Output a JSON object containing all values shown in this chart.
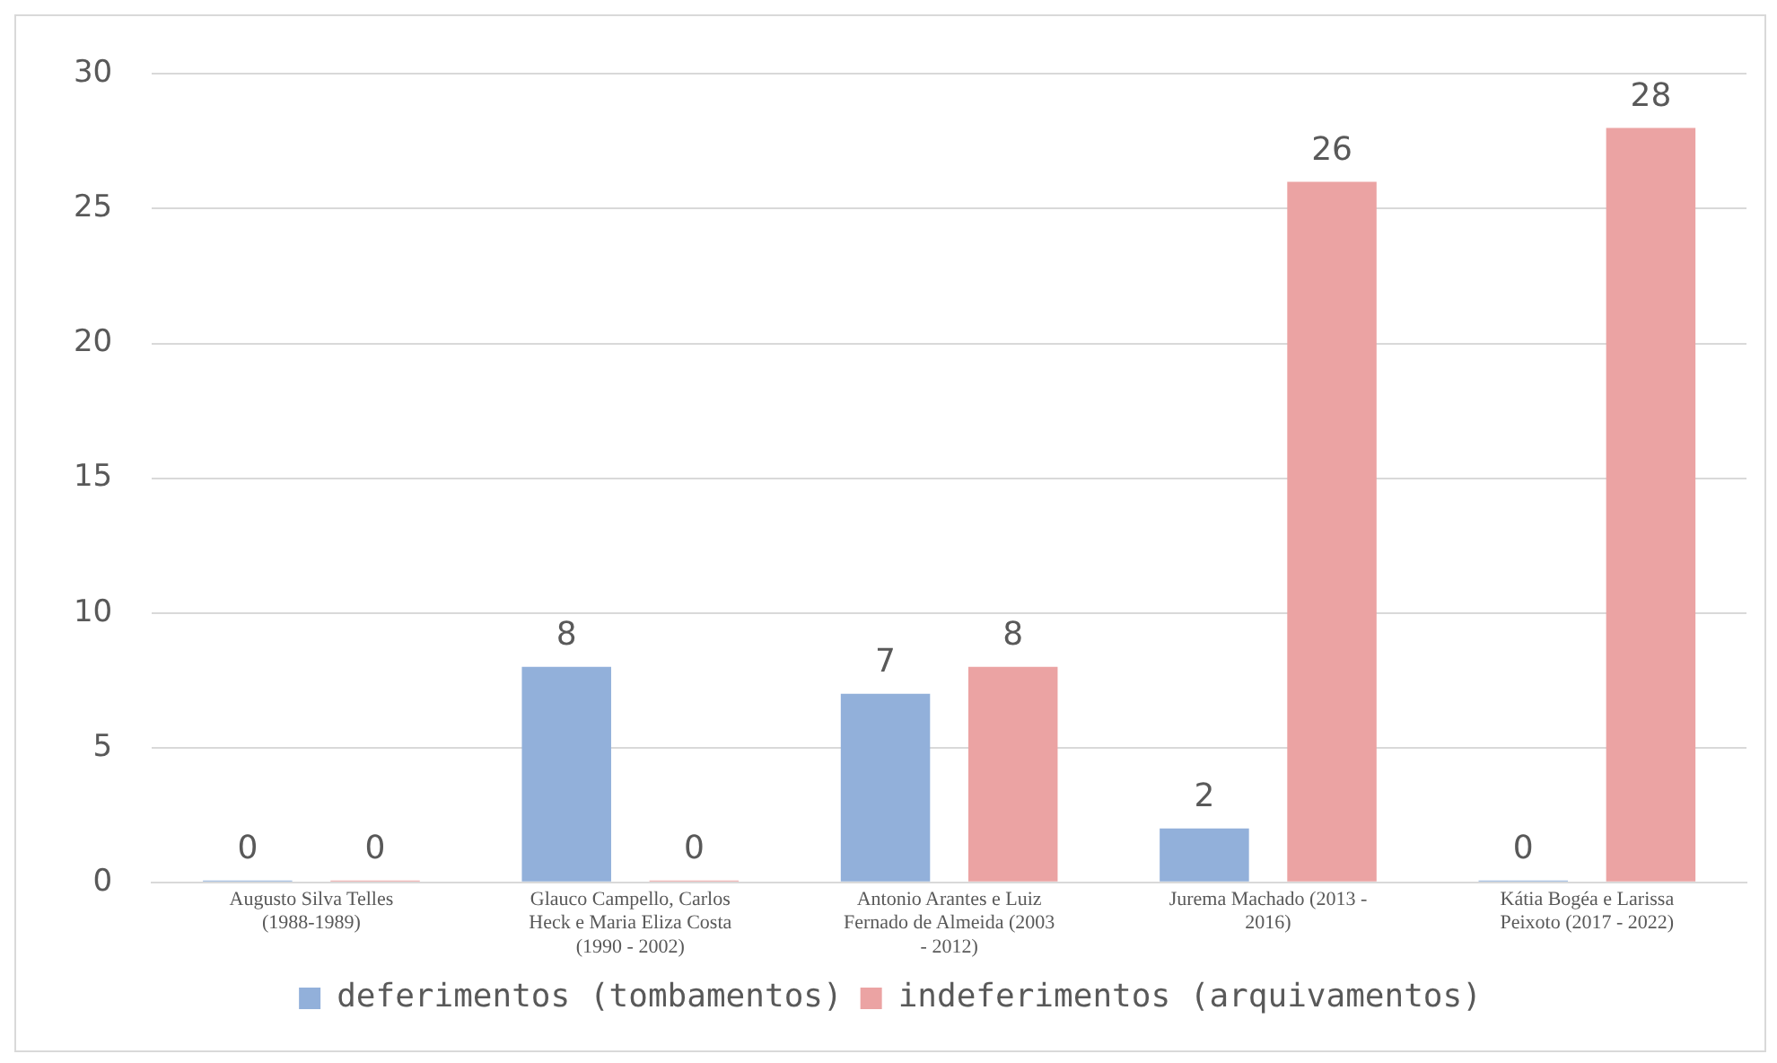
{
  "chart_data": {
    "type": "bar",
    "categories": [
      "Augusto Silva Telles (1988-1989)",
      "Glauco Campello, Carlos Heck e Maria Eliza Costa (1990 - 2002)",
      "Antonio Arantes e Luiz Fernado de Almeida (2003 - 2012)",
      "Jurema Machado (2013 - 2016)",
      "Kátia Bogéa e Larissa Peixoto (2017 - 2022)"
    ],
    "series": [
      {
        "name": "deferimentos (tombamentos)",
        "color": "#92b0da",
        "values": [
          0,
          8,
          7,
          2,
          0
        ]
      },
      {
        "name": "indeferimentos (arquivamentos)",
        "color": "#eba3a3",
        "values": [
          0,
          0,
          8,
          26,
          28
        ]
      }
    ],
    "ylim": [
      0,
      30
    ],
    "yticks": [
      0,
      5,
      10,
      15,
      20,
      25,
      30
    ],
    "grid": "y",
    "legend": "bottom",
    "data_labels": true
  }
}
